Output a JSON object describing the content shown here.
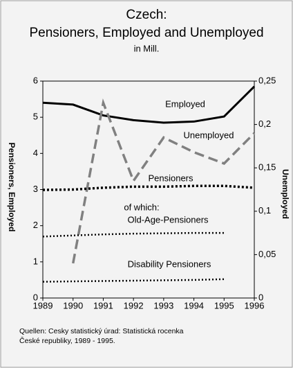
{
  "chart_data": {
    "type": "line",
    "title": [
      "Czech:",
      "Pensioners, Employed and Unemployed"
    ],
    "subtitle": "in Mill.",
    "ylabel": "Pensioners, Employed",
    "y2label": "Unemployed",
    "source": [
      "Quellen: Cesky statistický úrad: Statistická rocenka",
      "České republiky, 1989 - 1995."
    ],
    "annotation": "of which:",
    "x": [
      1989,
      1990,
      1991,
      1992,
      1993,
      1994,
      1995,
      1996
    ],
    "xlim": [
      1989,
      1996
    ],
    "xticks": [
      1989,
      1990,
      1991,
      1992,
      1993,
      1994,
      1995,
      1996
    ],
    "ylim": [
      0,
      6
    ],
    "yticks": [
      0,
      1,
      2,
      3,
      4,
      5,
      6
    ],
    "y2lim": [
      0,
      0.25
    ],
    "y2ticks": [
      0,
      {
        "value": 0.05,
        "label": "0,05"
      },
      {
        "value": 0.1,
        "label": "0,1"
      },
      {
        "value": 0.15,
        "label": "0,15"
      },
      {
        "value": 0.2,
        "label": "0,2"
      },
      {
        "value": 0.25,
        "label": "0,25"
      }
    ],
    "series": [
      {
        "name": "Employed",
        "color": "#000000",
        "style": "solid",
        "values": [
          5.4,
          5.35,
          5.05,
          4.92,
          4.85,
          4.88,
          5.02,
          5.85
        ]
      },
      {
        "name": "Unemployed",
        "color": "#808080",
        "style": "dashed",
        "axis": "y2",
        "values": [
          null,
          0.04,
          0.225,
          0.135,
          0.185,
          0.168,
          0.155,
          0.19
        ]
      },
      {
        "name": "Pensioners",
        "color": "#000000",
        "style": "dotted",
        "values": [
          2.99,
          3.0,
          3.05,
          3.08,
          3.08,
          3.1,
          3.1,
          3.05
        ]
      },
      {
        "name": "Old-Age-Pensioners",
        "color": "#000000",
        "style": "dotted-thin",
        "values": [
          1.7,
          1.73,
          1.76,
          1.78,
          1.79,
          1.8,
          1.8,
          null
        ]
      },
      {
        "name": "Disability Pensioners",
        "color": "#000000",
        "style": "dotted-thin",
        "values": [
          0.45,
          0.46,
          0.47,
          0.48,
          0.49,
          0.5,
          0.52,
          null
        ]
      }
    ]
  }
}
